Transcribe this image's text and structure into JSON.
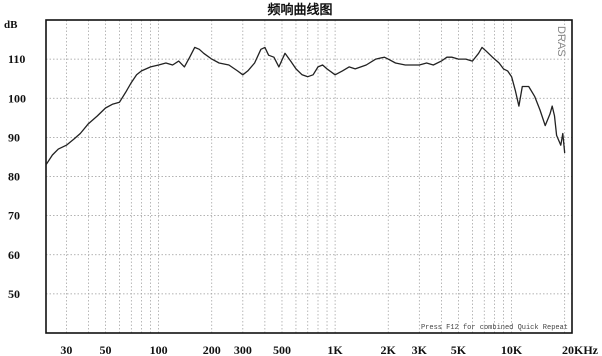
{
  "chart_data": {
    "type": "line",
    "title": "频响曲线图",
    "ylabel": "dB",
    "x_scale": "log",
    "xlim": [
      23,
      22000
    ],
    "ylim": [
      40,
      120
    ],
    "x_ticks": [
      {
        "value": 30,
        "label": "30"
      },
      {
        "value": 50,
        "label": "50"
      },
      {
        "value": 100,
        "label": "100"
      },
      {
        "value": 200,
        "label": "200"
      },
      {
        "value": 300,
        "label": "300"
      },
      {
        "value": 500,
        "label": "500"
      },
      {
        "value": 1000,
        "label": "1K"
      },
      {
        "value": 2000,
        "label": "2K"
      },
      {
        "value": 3000,
        "label": "3K"
      },
      {
        "value": 5000,
        "label": "5K"
      },
      {
        "value": 10000,
        "label": "10K"
      },
      {
        "value": 20000,
        "label": "20KHz"
      }
    ],
    "y_ticks": [
      {
        "value": 110,
        "label": "110"
      },
      {
        "value": 100,
        "label": "100"
      },
      {
        "value": 90,
        "label": "90"
      },
      {
        "value": 80,
        "label": "80"
      },
      {
        "value": 70,
        "label": "70"
      },
      {
        "value": 60,
        "label": "60"
      },
      {
        "value": 50,
        "label": "50"
      }
    ],
    "grid": true,
    "series": [
      {
        "color": "#222222",
        "points": [
          [
            23,
            83
          ],
          [
            25,
            85.5
          ],
          [
            27,
            87
          ],
          [
            30,
            88
          ],
          [
            33,
            89.5
          ],
          [
            36,
            91
          ],
          [
            40,
            93.5
          ],
          [
            45,
            95.5
          ],
          [
            50,
            97.5
          ],
          [
            55,
            98.5
          ],
          [
            60,
            99
          ],
          [
            65,
            101.5
          ],
          [
            70,
            104
          ],
          [
            75,
            106
          ],
          [
            80,
            107
          ],
          [
            90,
            108
          ],
          [
            100,
            108.5
          ],
          [
            110,
            109
          ],
          [
            120,
            108.5
          ],
          [
            130,
            109.5
          ],
          [
            140,
            108
          ],
          [
            150,
            110.5
          ],
          [
            160,
            113
          ],
          [
            170,
            112.5
          ],
          [
            180,
            111.5
          ],
          [
            200,
            110
          ],
          [
            220,
            109
          ],
          [
            250,
            108.5
          ],
          [
            280,
            107
          ],
          [
            300,
            106
          ],
          [
            320,
            107
          ],
          [
            350,
            109
          ],
          [
            380,
            112.5
          ],
          [
            400,
            113
          ],
          [
            420,
            111
          ],
          [
            450,
            110.5
          ],
          [
            480,
            108
          ],
          [
            520,
            111.5
          ],
          [
            560,
            109.5
          ],
          [
            600,
            107.5
          ],
          [
            650,
            106
          ],
          [
            700,
            105.5
          ],
          [
            750,
            106
          ],
          [
            800,
            108
          ],
          [
            850,
            108.5
          ],
          [
            900,
            107.5
          ],
          [
            1000,
            106
          ],
          [
            1100,
            107
          ],
          [
            1200,
            108
          ],
          [
            1300,
            107.5
          ],
          [
            1500,
            108.5
          ],
          [
            1700,
            110
          ],
          [
            1900,
            110.5
          ],
          [
            2000,
            110
          ],
          [
            2200,
            109
          ],
          [
            2500,
            108.5
          ],
          [
            2800,
            108.5
          ],
          [
            3000,
            108.5
          ],
          [
            3300,
            109
          ],
          [
            3600,
            108.5
          ],
          [
            4000,
            109.5
          ],
          [
            4300,
            110.5
          ],
          [
            4600,
            110.5
          ],
          [
            5000,
            110
          ],
          [
            5500,
            110
          ],
          [
            6000,
            109.5
          ],
          [
            6500,
            111.5
          ],
          [
            6800,
            113
          ],
          [
            7200,
            112
          ],
          [
            7800,
            110.5
          ],
          [
            8500,
            109
          ],
          [
            9000,
            107.5
          ],
          [
            9500,
            107
          ],
          [
            10000,
            105.5
          ],
          [
            10500,
            102
          ],
          [
            11000,
            98
          ],
          [
            11500,
            103
          ],
          [
            12500,
            103
          ],
          [
            13500,
            100.5
          ],
          [
            14500,
            97
          ],
          [
            15500,
            93
          ],
          [
            16500,
            96
          ],
          [
            17000,
            98
          ],
          [
            17500,
            95.5
          ],
          [
            18000,
            90.5
          ],
          [
            19000,
            88
          ],
          [
            19500,
            91
          ],
          [
            20000,
            86
          ]
        ]
      }
    ],
    "annotations": [
      "Press F12 for combined Quick Repeat",
      "DRAS"
    ]
  }
}
